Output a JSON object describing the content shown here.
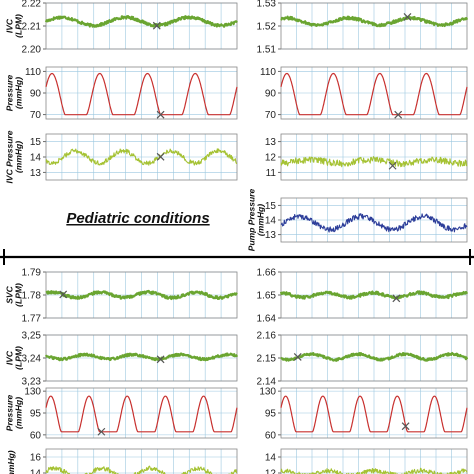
{
  "heading": "Pediatric conditions",
  "colors": {
    "green": "#6aa531",
    "red": "#c8312f",
    "yellowgreen": "#a5c233",
    "blue": "#2d3e9a",
    "grid": "#9cc8e0",
    "frame": "#888888"
  },
  "chart_data": [
    {
      "id": "a1",
      "type": "line",
      "ylabel": "IVC (LPM)",
      "yticks": [
        "2.22",
        "2.21",
        "2.20"
      ],
      "ylim": [
        2.2,
        2.22
      ],
      "color": "green",
      "pattern": "noisy-sine",
      "center": 2.212,
      "amplitude": 0.0018,
      "cycles": 3,
      "noise": 0.0006,
      "marker_x": 0.58
    },
    {
      "id": "b1",
      "type": "line",
      "ylabel": "",
      "yticks": [
        "1.53",
        "1.52",
        "1.51"
      ],
      "ylim": [
        1.51,
        1.53
      ],
      "color": "green",
      "pattern": "noisy-sine",
      "center": 1.522,
      "amplitude": 0.0015,
      "cycles": 3,
      "noise": 0.0006,
      "marker_x": 0.68
    },
    {
      "id": "a2",
      "type": "line",
      "ylabel": "Pressure (mmHg)",
      "yticks": [
        "110",
        "90",
        "70"
      ],
      "ylim": [
        66,
        114
      ],
      "color": "red",
      "pattern": "pulse",
      "base": 70,
      "peak": 108,
      "cycles": 4,
      "marker_x": 0.6
    },
    {
      "id": "b2",
      "type": "line",
      "ylabel": "",
      "yticks": [
        "110",
        "90",
        "70"
      ],
      "ylim": [
        66,
        114
      ],
      "color": "red",
      "pattern": "pulse",
      "base": 70,
      "peak": 108,
      "cycles": 4,
      "marker_x": 0.63
    },
    {
      "id": "a3",
      "type": "line",
      "ylabel": "IVC Pressure (mmHg)",
      "yticks": [
        "15",
        "14",
        "13"
      ],
      "ylim": [
        12.5,
        15.5
      ],
      "color": "yellowgreen",
      "pattern": "noisy-sine",
      "center": 14.0,
      "amplitude": 0.4,
      "cycles": 4,
      "noise": 0.15,
      "marker_x": 0.6
    },
    {
      "id": "b3",
      "type": "line",
      "ylabel": "",
      "yticks": [
        "13",
        "12",
        "11"
      ],
      "ylim": [
        10.5,
        13.5
      ],
      "color": "yellowgreen",
      "pattern": "noisy-sine",
      "center": 11.7,
      "amplitude": 0.12,
      "cycles": 3,
      "noise": 0.22,
      "marker_x": 0.6
    },
    {
      "id": "b4",
      "type": "line",
      "ylabel": "Pump Pressure (mmHg)",
      "yticks": [
        "15",
        "14",
        "13"
      ],
      "ylim": [
        12.5,
        15.5
      ],
      "color": "blue",
      "pattern": "noisy-sine",
      "center": 13.8,
      "amplitude": 0.45,
      "cycles": 3,
      "noise": 0.18
    },
    {
      "id": "c1",
      "type": "line",
      "ylabel": "SVC (LPM)",
      "yticks": [
        "1.79",
        "1.78",
        "1.77"
      ],
      "ylim": [
        1.77,
        1.79
      ],
      "color": "green",
      "pattern": "noisy-sine",
      "center": 1.78,
      "amplitude": 0.0012,
      "cycles": 4,
      "noise": 0.0006,
      "marker_x": 0.09
    },
    {
      "id": "d1",
      "type": "line",
      "ylabel": "",
      "yticks": [
        "1.66",
        "1.65",
        "1.64"
      ],
      "ylim": [
        1.64,
        1.66
      ],
      "color": "green",
      "pattern": "noisy-sine",
      "center": 1.65,
      "amplitude": 0.001,
      "cycles": 4,
      "noise": 0.0006,
      "marker_x": 0.62
    },
    {
      "id": "c2",
      "type": "line",
      "ylabel": "IVC (LPM)",
      "yticks": [
        "3,25",
        "3,24",
        "3,23"
      ],
      "ylim": [
        3.23,
        3.25
      ],
      "color": "green",
      "pattern": "noisy-sine",
      "center": 3.2405,
      "amplitude": 0.001,
      "cycles": 4,
      "noise": 0.0005,
      "marker_x": 0.6
    },
    {
      "id": "d2",
      "type": "line",
      "ylabel": "",
      "yticks": [
        "2.16",
        "2.15",
        "2.14"
      ],
      "ylim": [
        2.14,
        2.16
      ],
      "color": "green",
      "pattern": "noisy-sine",
      "center": 2.1505,
      "amplitude": 0.0012,
      "cycles": 4,
      "noise": 0.0005,
      "marker_x": 0.09
    },
    {
      "id": "c3",
      "type": "line",
      "ylabel": "Pressure (mmHg)",
      "yticks": [
        "130",
        "95",
        "60"
      ],
      "ylim": [
        55,
        135
      ],
      "color": "red",
      "pattern": "pulse",
      "base": 65,
      "peak": 122,
      "cycles": 5,
      "marker_x": 0.29
    },
    {
      "id": "d3",
      "type": "line",
      "ylabel": "",
      "yticks": [
        "130",
        "95",
        "60"
      ],
      "ylim": [
        55,
        135
      ],
      "color": "red",
      "pattern": "pulse",
      "base": 65,
      "peak": 122,
      "cycles": 5,
      "marker_x": 0.67
    },
    {
      "id": "c4",
      "type": "line",
      "ylabel": "mmHg)",
      "yticks": [
        "16",
        "14"
      ],
      "ylim": [
        13,
        17
      ],
      "color": "yellowgreen",
      "pattern": "noisy-sine",
      "center": 14.0,
      "amplitude": 0.6,
      "cycles": 4,
      "noise": 0.3
    },
    {
      "id": "d4",
      "type": "line",
      "ylabel": "",
      "yticks": [
        "14",
        "12"
      ],
      "ylim": [
        11,
        15
      ],
      "color": "yellowgreen",
      "pattern": "noisy-sine",
      "center": 12.0,
      "amplitude": 0.3,
      "cycles": 4,
      "noise": 0.3
    }
  ]
}
